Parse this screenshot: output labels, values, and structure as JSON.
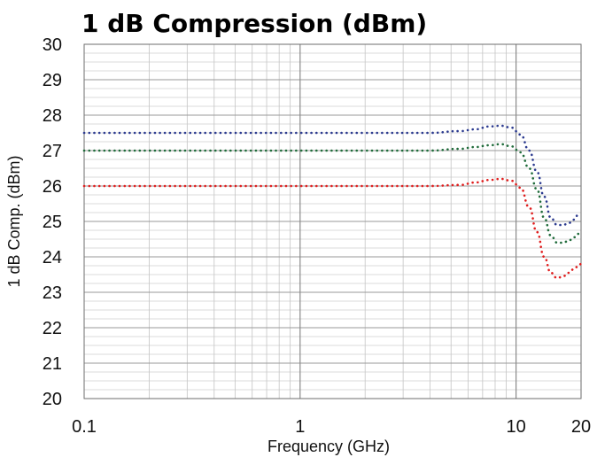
{
  "chart_data": {
    "type": "line",
    "title": "1 dB Compression (dBm)",
    "xlabel": "Frequency (GHz)",
    "ylabel": "1 dB Comp. (dBm)",
    "x_scale": "log",
    "xlim": [
      0.1,
      20
    ],
    "ylim": [
      20,
      30
    ],
    "x_ticks": [
      "0.1",
      "1",
      "10",
      "20"
    ],
    "y_ticks": [
      "20",
      "21",
      "22",
      "23",
      "24",
      "25",
      "26",
      "27",
      "28",
      "29",
      "30"
    ],
    "grid": true,
    "legend": "none",
    "line_style": "dotted",
    "series": [
      {
        "color": "#2b3a8f",
        "x": [
          0.1,
          0.5,
          1,
          2,
          4,
          5.5,
          6.5,
          7.5,
          8.5,
          9.5,
          10.5,
          11.5,
          12.5,
          13.5,
          14.5,
          15.5,
          16.5,
          17.5,
          18.5,
          19.5,
          20
        ],
        "y": [
          27.5,
          27.5,
          27.5,
          27.5,
          27.5,
          27.55,
          27.6,
          27.68,
          27.7,
          27.65,
          27.45,
          27.0,
          26.4,
          25.7,
          25.1,
          24.9,
          24.9,
          24.95,
          25.05,
          25.2,
          25.2
        ]
      },
      {
        "color": "#1f6b3a",
        "x": [
          0.1,
          0.5,
          1,
          2,
          4,
          5.5,
          6.5,
          7.5,
          8.5,
          9.5,
          10.5,
          11.5,
          12.5,
          13.5,
          14.5,
          15.5,
          16.5,
          17.5,
          18.5,
          19.5,
          20
        ],
        "y": [
          27.0,
          27.0,
          27.0,
          27.0,
          27.0,
          27.05,
          27.1,
          27.15,
          27.18,
          27.12,
          26.95,
          26.5,
          25.9,
          25.1,
          24.6,
          24.4,
          24.4,
          24.45,
          24.55,
          24.65,
          24.65
        ]
      },
      {
        "color": "#e01e1e",
        "x": [
          0.1,
          0.5,
          1,
          2,
          4,
          5.5,
          6.5,
          7.5,
          8.5,
          9.5,
          10.5,
          11.5,
          12.5,
          13.5,
          14.5,
          15.5,
          16.5,
          17.5,
          18.5,
          19.5,
          20
        ],
        "y": [
          26.0,
          26.0,
          26.0,
          26.0,
          26.0,
          26.03,
          26.1,
          26.17,
          26.2,
          26.15,
          25.95,
          25.4,
          24.7,
          24.0,
          23.55,
          23.4,
          23.45,
          23.55,
          23.65,
          23.75,
          23.8
        ]
      }
    ]
  }
}
